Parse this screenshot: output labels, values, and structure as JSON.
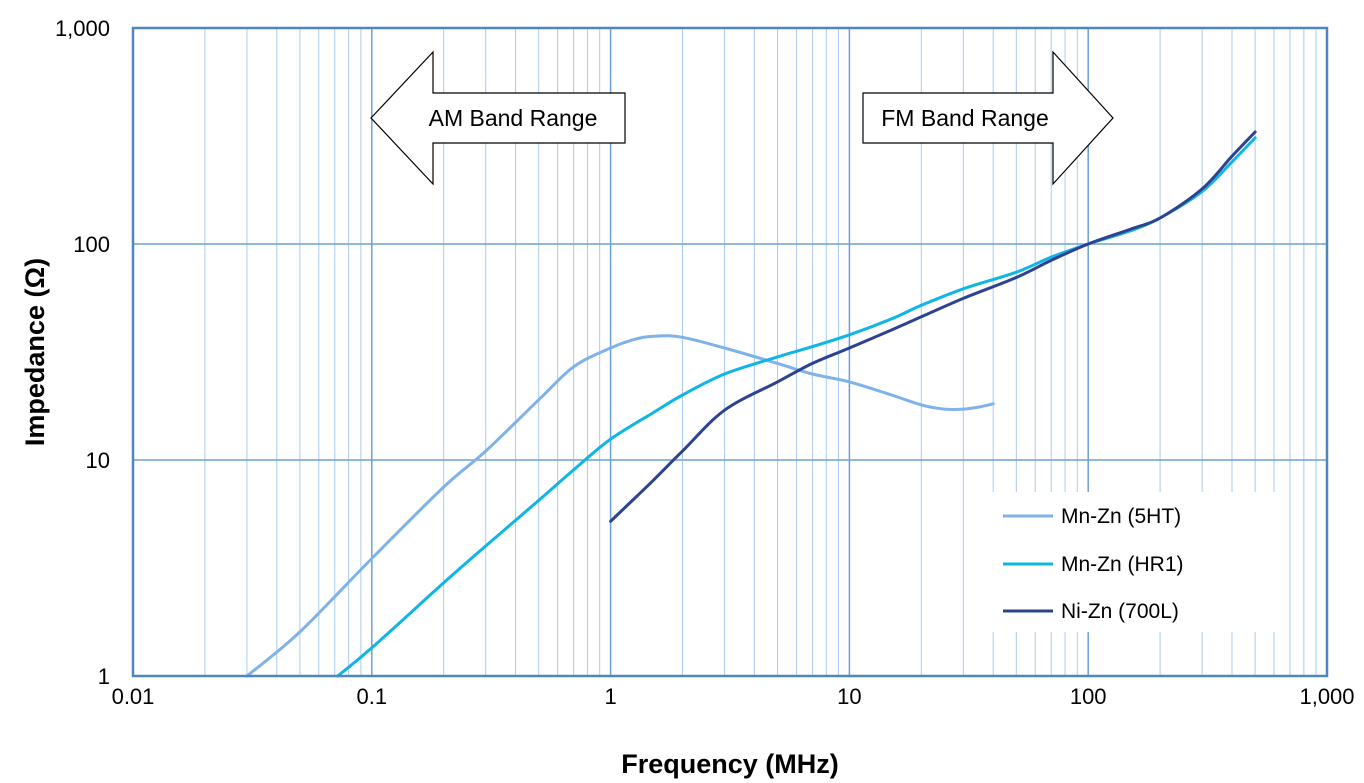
{
  "chart_data": {
    "type": "line",
    "title": "",
    "xlabel": "Frequency (MHz)",
    "ylabel": "Impedance (Ω)",
    "xscale": "log",
    "yscale": "log",
    "xlim": [
      0.01,
      1000
    ],
    "ylim": [
      1,
      1000
    ],
    "grid": true,
    "legend_position": "bottom-right",
    "x_tick_values": [
      0.01,
      0.1,
      1,
      10,
      100,
      1000
    ],
    "x_tick_labels": [
      "0.01",
      "0.1",
      "1",
      "10",
      "100",
      "1,000"
    ],
    "y_tick_values": [
      1,
      10,
      100,
      1000
    ],
    "y_tick_labels": [
      "1",
      "10",
      "100",
      "1,000"
    ],
    "annotations": [
      {
        "text": "AM Band Range",
        "direction": "left"
      },
      {
        "text": "FM Band Range",
        "direction": "right"
      }
    ],
    "series": [
      {
        "name": "Mn-Zn (5HT)",
        "color": "#7eb2e8",
        "x": [
          0.03,
          0.05,
          0.1,
          0.2,
          0.3,
          0.5,
          0.7,
          1,
          1.3,
          1.6,
          2,
          3,
          5,
          7,
          10,
          15,
          20,
          25,
          30,
          35,
          40
        ],
        "y": [
          1,
          1.6,
          3.5,
          7.5,
          11,
          19,
          27,
          33,
          36.5,
          37.5,
          37,
          33,
          28,
          25,
          23,
          20,
          18,
          17.2,
          17.2,
          17.6,
          18.2
        ]
      },
      {
        "name": "Mn-Zn (HR1)",
        "color": "#0fb5e6",
        "x": [
          0.072,
          0.1,
          0.2,
          0.3,
          0.5,
          0.7,
          1,
          1.5,
          2,
          3,
          5,
          7,
          10,
          15,
          20,
          30,
          50,
          70,
          100,
          150,
          200,
          300,
          400,
          500
        ],
        "y": [
          1,
          1.35,
          2.7,
          4,
          6.5,
          9,
          12.5,
          16.5,
          20,
          25,
          30,
          33.5,
          38,
          45,
          52,
          62,
          74,
          87,
          100,
          115,
          132,
          175,
          240,
          310
        ]
      },
      {
        "name": "Ni-Zn (700L)",
        "color": "#2e4390",
        "x": [
          1,
          1.5,
          2,
          3,
          5,
          7,
          10,
          15,
          20,
          30,
          50,
          70,
          100,
          150,
          200,
          300,
          400,
          500
        ],
        "y": [
          5.2,
          8,
          11,
          17,
          23,
          28,
          33,
          40,
          46,
          56,
          70,
          84,
          100,
          117,
          132,
          180,
          255,
          330
        ]
      }
    ]
  }
}
